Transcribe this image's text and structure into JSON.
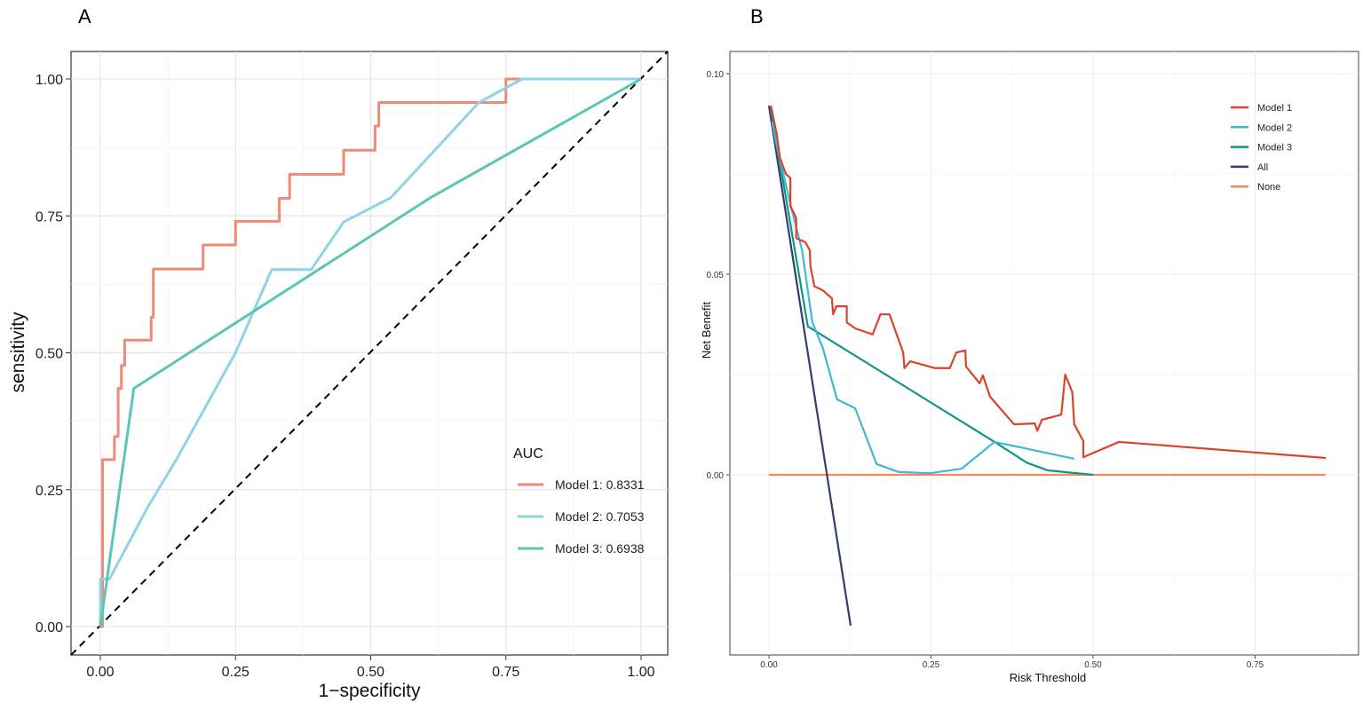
{
  "chart_data": [
    {
      "panel_label": "A",
      "type": "line",
      "xlabel": "1−specificity",
      "ylabel": "sensitivity",
      "xlim": [
        0,
        1
      ],
      "ylim": [
        0,
        1
      ],
      "xticks": [
        "0.00",
        "0.25",
        "0.50",
        "0.75",
        "1.00"
      ],
      "yticks": [
        "0.00",
        "0.25",
        "0.50",
        "0.75",
        "1.00"
      ],
      "grid": true,
      "legend": {
        "title": "AUC",
        "placement": "bottom-right"
      },
      "reference_line": {
        "type": "diagonal",
        "style": "dashed",
        "color": "#000000"
      },
      "series": [
        {
          "name": "Model 1: 0.8331",
          "color": "#ef8a76",
          "x": [
            0,
            0.004,
            0.004,
            0.026,
            0.026,
            0.033,
            0.033,
            0.039,
            0.039,
            0.045,
            0.045,
            0.094,
            0.094,
            0.098,
            0.098,
            0.19,
            0.19,
            0.25,
            0.25,
            0.331,
            0.331,
            0.35,
            0.35,
            0.45,
            0.45,
            0.508,
            0.508,
            0.515,
            0.515,
            0.75,
            0.75,
            1
          ],
          "y": [
            0,
            0,
            0.305,
            0.305,
            0.347,
            0.347,
            0.435,
            0.435,
            0.477,
            0.477,
            0.523,
            0.523,
            0.565,
            0.565,
            0.653,
            0.653,
            0.697,
            0.697,
            0.74,
            0.74,
            0.782,
            0.782,
            0.826,
            0.826,
            0.87,
            0.87,
            0.914,
            0.914,
            0.957,
            0.957,
            1,
            1
          ]
        },
        {
          "name": "Model 2: 0.7053",
          "color": "#8fd3e6",
          "x": [
            0,
            0,
            0.017,
            0.087,
            0.14,
            0.25,
            0.317,
            0.39,
            0.45,
            0.537,
            0.7,
            0.78,
            1
          ],
          "y": [
            0,
            0.087,
            0.087,
            0.217,
            0.304,
            0.5,
            0.652,
            0.652,
            0.739,
            0.783,
            0.957,
            1,
            1
          ]
        },
        {
          "name": "Model 3: 0.6938",
          "color": "#5cc6b3",
          "x": [
            0,
            0.062,
            0.61,
            1
          ],
          "y": [
            0,
            0.435,
            0.783,
            1
          ]
        }
      ]
    },
    {
      "panel_label": "B",
      "type": "line",
      "xlabel": "Risk Threshold",
      "ylabel": "Net Benefit",
      "xlim": [
        -0.02,
        0.88
      ],
      "ylim": [
        -0.045,
        0.105
      ],
      "xticks": [
        "0.00",
        "0.25",
        "0.50",
        "0.75"
      ],
      "yticks": [
        "0.00",
        "0.05",
        "0.10"
      ],
      "grid": true,
      "legend": {
        "title": "",
        "placement": "top-right"
      },
      "series": [
        {
          "name": "Model 1",
          "color": "#d9442a",
          "x": [
            0.003,
            0.012,
            0.017,
            0.026,
            0.033,
            0.033,
            0.042,
            0.042,
            0.056,
            0.063,
            0.064,
            0.07,
            0.083,
            0.097,
            0.099,
            0.104,
            0.12,
            0.12,
            0.133,
            0.16,
            0.172,
            0.186,
            0.207,
            0.209,
            0.218,
            0.256,
            0.279,
            0.289,
            0.303,
            0.304,
            0.325,
            0.33,
            0.341,
            0.378,
            0.41,
            0.414,
            0.421,
            0.451,
            0.457,
            0.468,
            0.471,
            0.485,
            0.485,
            0.54,
            0.859
          ],
          "y": [
            0.092,
            0.085,
            0.079,
            0.075,
            0.074,
            0.067,
            0.064,
            0.059,
            0.058,
            0.056,
            0.052,
            0.047,
            0.046,
            0.044,
            0.04,
            0.042,
            0.042,
            0.038,
            0.0365,
            0.035,
            0.04,
            0.04,
            0.0305,
            0.0266,
            0.0283,
            0.0266,
            0.0266,
            0.0305,
            0.031,
            0.027,
            0.0228,
            0.0248,
            0.0195,
            0.0126,
            0.0128,
            0.011,
            0.0137,
            0.015,
            0.025,
            0.0206,
            0.0126,
            0.0084,
            0.0044,
            0.0082,
            0.0042
          ]
        },
        {
          "name": "Model 2",
          "color": "#42b6d6",
          "x": [
            0.005,
            0.012,
            0.033,
            0.051,
            0.067,
            0.083,
            0.105,
            0.133,
            0.166,
            0.2,
            0.248,
            0.297,
            0.348,
            0.471
          ],
          "y": [
            0.088,
            0.082,
            0.0675,
            0.056,
            0.038,
            0.0317,
            0.0188,
            0.0166,
            0.0027,
            0.0007,
            0.0004,
            0.0015,
            0.0082,
            0.004
          ]
        },
        {
          "name": "Model 3",
          "color": "#109682",
          "x": [
            0.003,
            0.06,
            0.348,
            0.398,
            0.43,
            0.5
          ],
          "y": [
            0.091,
            0.037,
            0.0082,
            0.003,
            0.0011,
            0.0
          ]
        },
        {
          "name": "All",
          "color": "#2f3f74",
          "x": [
            0.0,
            0.126
          ],
          "y": [
            0.092,
            -0.0376
          ]
        },
        {
          "name": "None",
          "color": "#f28a5e",
          "x": [
            0.0,
            0.859
          ],
          "y": [
            0.0,
            0.0
          ]
        }
      ]
    }
  ]
}
